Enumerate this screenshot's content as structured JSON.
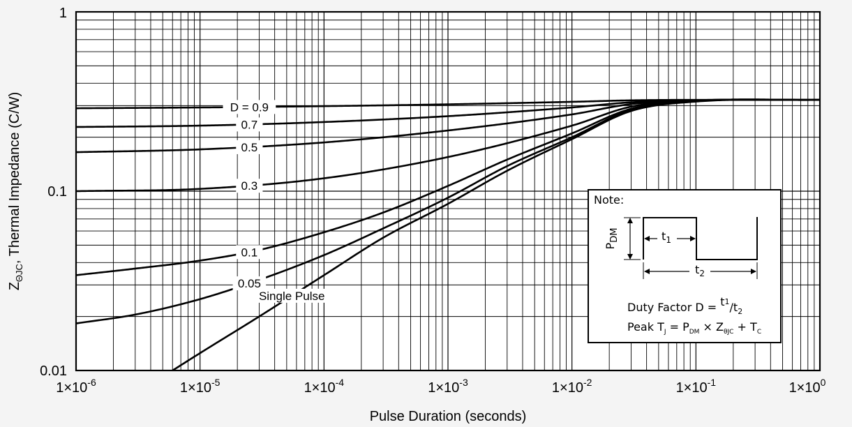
{
  "chart_data": {
    "type": "line",
    "xscale": "log",
    "yscale": "log",
    "xlim": [
      1e-06,
      1
    ],
    "ylim": [
      0.01,
      1
    ],
    "grid": true,
    "xlabel": "Pulse Duration (seconds)",
    "ylabel": {
      "prefix": "Z",
      "sub": "ΘJC",
      "suffix": ",  Thermal Impedance (C/W)"
    },
    "xticks": [
      {
        "mant": "1×10",
        "exp": "-6",
        "value": 1e-06
      },
      {
        "mant": "1×10",
        "exp": "-5",
        "value": 1e-05
      },
      {
        "mant": "1×10",
        "exp": "-4",
        "value": 0.0001
      },
      {
        "mant": "1×10",
        "exp": "-3",
        "value": 0.001
      },
      {
        "mant": "1×10",
        "exp": "-2",
        "value": 0.01
      },
      {
        "mant": "1×10",
        "exp": "-1",
        "value": 0.1
      },
      {
        "mant": "1×10",
        "exp": "0",
        "value": 1
      }
    ],
    "yticks": [
      {
        "label": "1",
        "value": 1
      },
      {
        "label": "0.1",
        "value": 0.1
      },
      {
        "label": "0.01",
        "value": 0.01
      }
    ],
    "series": [
      {
        "name": "D = 0.9",
        "label_at": 2.5e-05,
        "points": [
          [
            1e-06,
            0.29
          ],
          [
            1e-05,
            0.293
          ],
          [
            0.0001,
            0.298
          ],
          [
            0.001,
            0.305
          ],
          [
            0.01,
            0.315
          ],
          [
            0.03,
            0.321
          ],
          [
            0.1,
            0.323
          ],
          [
            1,
            0.323
          ]
        ]
      },
      {
        "name": "0.7",
        "label_at": 2.5e-05,
        "points": [
          [
            1e-06,
            0.228
          ],
          [
            1e-05,
            0.232
          ],
          [
            0.0001,
            0.243
          ],
          [
            0.001,
            0.262
          ],
          [
            0.01,
            0.293
          ],
          [
            0.03,
            0.313
          ],
          [
            0.1,
            0.322
          ],
          [
            1,
            0.323
          ]
        ]
      },
      {
        "name": "0.5",
        "label_at": 2.5e-05,
        "points": [
          [
            1e-06,
            0.165
          ],
          [
            1e-05,
            0.171
          ],
          [
            0.0001,
            0.187
          ],
          [
            0.001,
            0.218
          ],
          [
            0.01,
            0.268
          ],
          [
            0.03,
            0.306
          ],
          [
            0.1,
            0.321
          ],
          [
            1,
            0.323
          ]
        ]
      },
      {
        "name": "0.3",
        "label_at": 2.5e-05,
        "points": [
          [
            1e-06,
            0.1
          ],
          [
            1e-05,
            0.103
          ],
          [
            0.0001,
            0.118
          ],
          [
            0.001,
            0.155
          ],
          [
            0.01,
            0.232
          ],
          [
            0.03,
            0.296
          ],
          [
            0.1,
            0.32
          ],
          [
            1,
            0.323
          ]
        ]
      },
      {
        "name": "0.1",
        "label_at": 2.5e-05,
        "points": [
          [
            1e-06,
            0.034
          ],
          [
            3e-06,
            0.037
          ],
          [
            1e-05,
            0.041
          ],
          [
            3e-05,
            0.047
          ],
          [
            0.0001,
            0.059
          ],
          [
            0.0003,
            0.076
          ],
          [
            0.001,
            0.107
          ],
          [
            0.003,
            0.15
          ],
          [
            0.01,
            0.21
          ],
          [
            0.03,
            0.288
          ],
          [
            0.1,
            0.318
          ],
          [
            1,
            0.323
          ]
        ]
      },
      {
        "name": "0.05",
        "label_at": 2.5e-05,
        "points": [
          [
            1e-06,
            0.0183
          ],
          [
            3e-06,
            0.0205
          ],
          [
            1e-05,
            0.025
          ],
          [
            3e-05,
            0.032
          ],
          [
            0.0001,
            0.044
          ],
          [
            0.0003,
            0.062
          ],
          [
            0.001,
            0.092
          ],
          [
            0.003,
            0.138
          ],
          [
            0.01,
            0.2
          ],
          [
            0.03,
            0.284
          ],
          [
            0.1,
            0.318
          ],
          [
            1,
            0.323
          ]
        ]
      },
      {
        "name": "Single Pulse",
        "label_at": 5.5e-05,
        "points": [
          [
            6e-06,
            0.01
          ],
          [
            1e-05,
            0.0125
          ],
          [
            3e-05,
            0.02
          ],
          [
            0.0001,
            0.034
          ],
          [
            0.0003,
            0.055
          ],
          [
            0.001,
            0.085
          ],
          [
            0.003,
            0.13
          ],
          [
            0.01,
            0.195
          ],
          [
            0.03,
            0.28
          ],
          [
            0.1,
            0.316
          ],
          [
            1,
            0.323
          ]
        ]
      }
    ]
  },
  "note": {
    "title": "Note:",
    "pdm": {
      "main": "P",
      "sub": "DM"
    },
    "t1": {
      "main": "t",
      "sub": "1"
    },
    "t2": {
      "main": "t",
      "sub": "2"
    },
    "duty": {
      "prefix": "Duty Factor D = ",
      "num": "t",
      "num_sub": "1",
      "slash": "/t",
      "den_sub": "2"
    },
    "peak": {
      "part1": "Peak T",
      "sub1": "J",
      "part2": " = P",
      "sub2": "DM",
      "part3": " × Z",
      "sub3": "θJC",
      "part4": " + T",
      "sub4": "C"
    }
  }
}
